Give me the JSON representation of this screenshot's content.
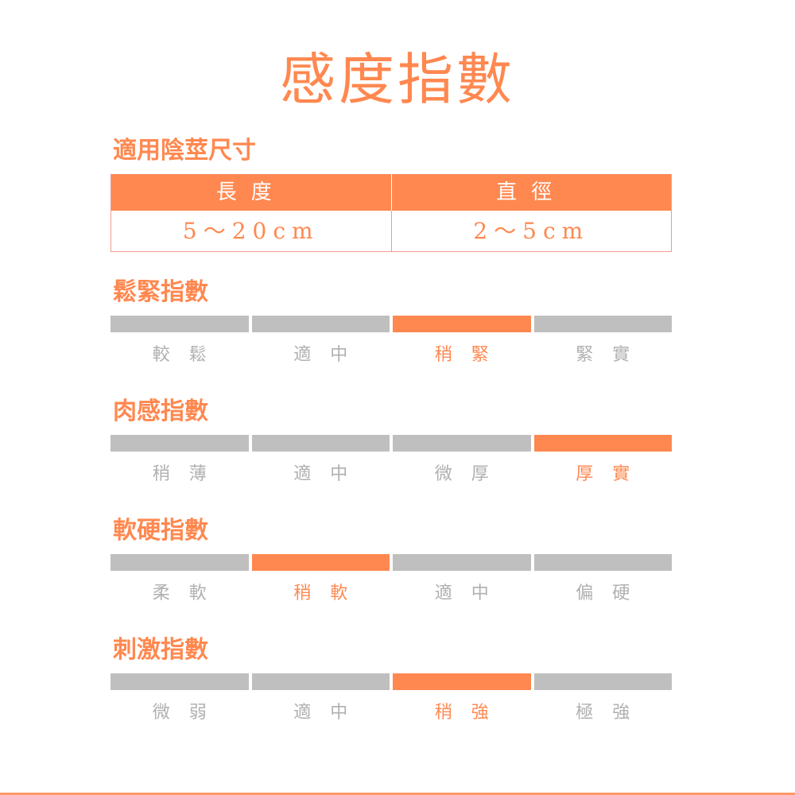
{
  "title": "感度指數",
  "size": {
    "heading": "適用陰莖尺寸",
    "columns": [
      "長度",
      "直徑"
    ],
    "values": [
      "5～20cm",
      "2～5cm"
    ]
  },
  "indices": [
    {
      "heading": "鬆緊指數",
      "options": [
        "較鬆",
        "適中",
        "稍緊",
        "緊實"
      ],
      "selected_index": 2
    },
    {
      "heading": "肉感指數",
      "options": [
        "稍薄",
        "適中",
        "微厚",
        "厚實"
      ],
      "selected_index": 3
    },
    {
      "heading": "軟硬指數",
      "options": [
        "柔軟",
        "稍軟",
        "適中",
        "偏硬"
      ],
      "selected_index": 1
    },
    {
      "heading": "刺激指數",
      "options": [
        "微弱",
        "適中",
        "稍強",
        "極強"
      ],
      "selected_index": 2
    }
  ],
  "colors": {
    "accent": "#FF8850",
    "inactive_bar": "#BFBFBF",
    "inactive_text": "#B0B0B0"
  }
}
